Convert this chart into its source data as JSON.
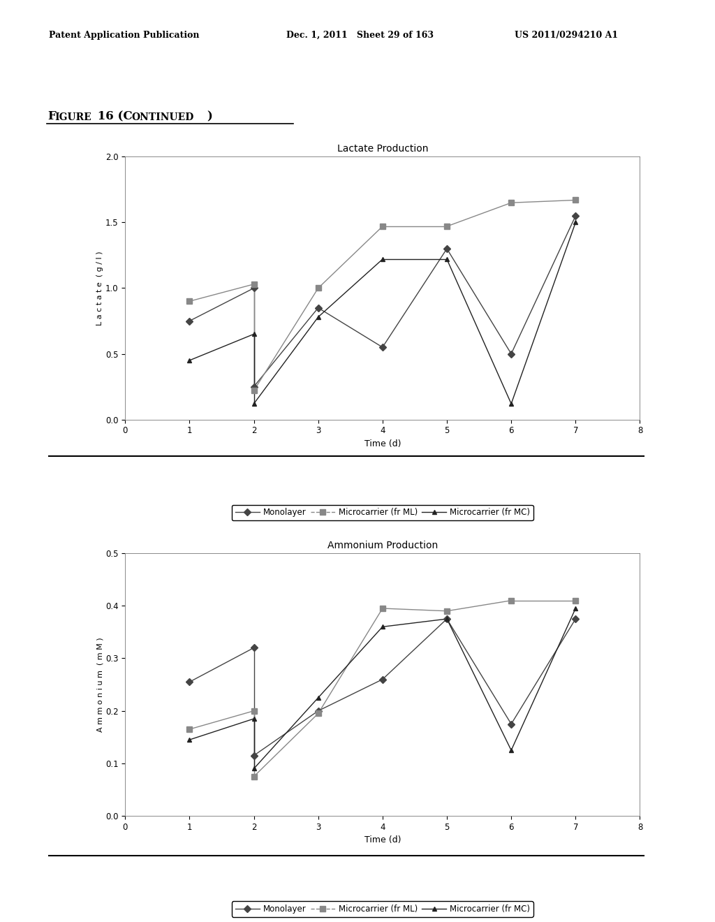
{
  "page_header_left": "Patent Application Publication",
  "page_header_mid": "Dec. 1, 2011   Sheet 29 of 163",
  "page_header_right": "US 2011/0294210 A1",
  "figure_label": "Figure 16 (Continued)",
  "background_color": "#ffffff",
  "lactate": {
    "title": "Lactate Production",
    "xlabel": "Time (d)",
    "ylabel": "Lactate (g/l)",
    "xlim": [
      0,
      8
    ],
    "ylim": [
      0,
      2
    ],
    "yticks": [
      0,
      0.5,
      1.0,
      1.5,
      2.0
    ],
    "xticks": [
      0,
      1,
      2,
      3,
      4,
      5,
      6,
      7,
      8
    ],
    "mono_x": [
      1,
      2,
      2,
      3,
      4,
      5,
      6,
      7
    ],
    "mono_y": [
      0.75,
      1.0,
      0.25,
      0.85,
      0.55,
      1.3,
      0.5,
      1.55
    ],
    "ml_x": [
      1,
      2,
      2,
      3,
      4,
      5,
      6,
      7
    ],
    "ml_y": [
      0.9,
      1.03,
      0.22,
      1.0,
      1.47,
      1.47,
      1.65,
      1.67
    ],
    "mc_x": [
      1,
      2,
      2,
      3,
      4,
      5,
      6,
      7
    ],
    "mc_y": [
      0.45,
      0.65,
      0.12,
      0.78,
      1.22,
      1.22,
      0.12,
      1.5
    ]
  },
  "ammonium": {
    "title": "Ammonium Production",
    "xlabel": "Time (d)",
    "ylabel": "Ammonium (mM)",
    "xlim": [
      0,
      8
    ],
    "ylim": [
      0,
      0.5
    ],
    "yticks": [
      0,
      0.1,
      0.2,
      0.3,
      0.4,
      0.5
    ],
    "xticks": [
      0,
      1,
      2,
      3,
      4,
      5,
      6,
      7,
      8
    ],
    "mono_x": [
      1,
      2,
      2,
      3,
      4,
      5,
      6,
      7
    ],
    "mono_y": [
      0.255,
      0.32,
      0.115,
      0.2,
      0.26,
      0.375,
      0.175,
      0.375
    ],
    "ml_x": [
      1,
      2,
      2,
      3,
      4,
      5,
      6,
      7
    ],
    "ml_y": [
      0.165,
      0.2,
      0.075,
      0.195,
      0.395,
      0.39,
      0.41,
      0.41
    ],
    "mc_x": [
      1,
      2,
      2,
      3,
      4,
      5,
      6,
      7
    ],
    "mc_y": [
      0.145,
      0.185,
      0.09,
      0.225,
      0.36,
      0.375,
      0.125,
      0.395
    ]
  },
  "legend_labels": [
    "Monolayer",
    "Microcarrier (fr ML)",
    "Microcarrier (fr MC)"
  ],
  "color_mono": "#444444",
  "color_ml": "#888888",
  "color_mc": "#222222",
  "marker_mono": "D",
  "marker_ml": "s",
  "marker_mc": "^",
  "lw": 1.0,
  "ms_mono": 5,
  "ms_ml": 6,
  "ms_mc": 5
}
